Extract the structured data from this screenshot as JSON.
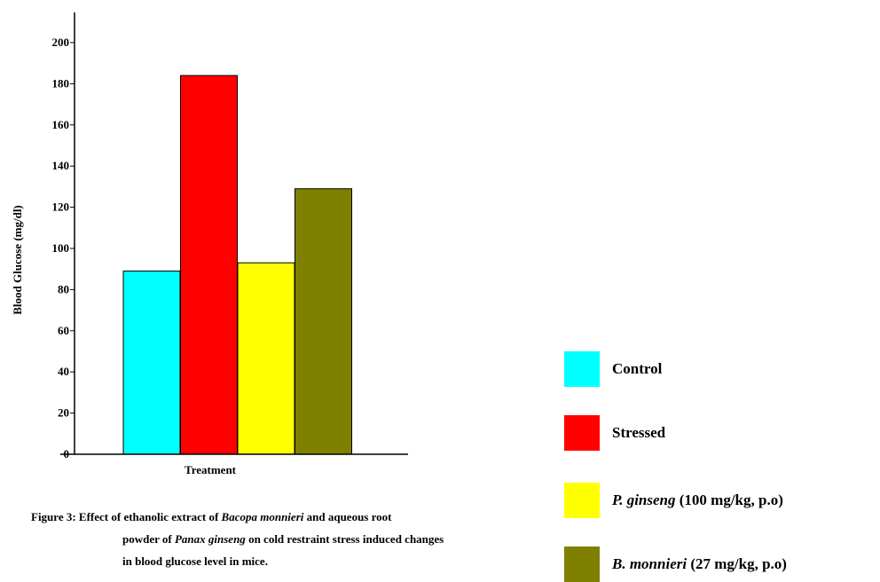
{
  "chart_data": {
    "type": "bar",
    "ylabel": "Blood Glucose (mg/dl)",
    "xlabel": "Treatment",
    "ylim": [
      0,
      210
    ],
    "yticks": [
      0,
      20,
      40,
      60,
      80,
      100,
      120,
      140,
      160,
      180,
      200
    ],
    "series": [
      {
        "name": "Control",
        "value": 89,
        "color": "#00FFFF"
      },
      {
        "name": "Stressed",
        "value": 184,
        "color": "#FF0000"
      },
      {
        "name": "P. ginseng (100 mg/kg, p.o)",
        "value": 93,
        "color": "#FFFF00"
      },
      {
        "name": "B. monnieri (27 mg/kg, p.o)",
        "value": 129,
        "color": "#808000"
      }
    ]
  },
  "legend": [
    {
      "species": "",
      "rest": "Control",
      "color": "#00FFFF"
    },
    {
      "species": "",
      "rest": "Stressed",
      "color": "#FF0000"
    },
    {
      "species": "P. ginseng",
      "rest": " (100 mg/kg, p.o)",
      "color": "#FFFF00"
    },
    {
      "species": "B. monnieri",
      "rest": " (27 mg/kg, p.o)",
      "color": "#808000"
    }
  ],
  "caption": {
    "line1_prefix": "Figure 3: Effect of ethanolic extract of ",
    "line1_species": "Bacopa monnieri",
    "line1_suffix": " and aqueous root",
    "line2_prefix": "powder of ",
    "line2_species": "Panax ginseng",
    "line2_suffix": " on cold restraint stress induced changes",
    "line3": "in blood glucose level in mice."
  }
}
